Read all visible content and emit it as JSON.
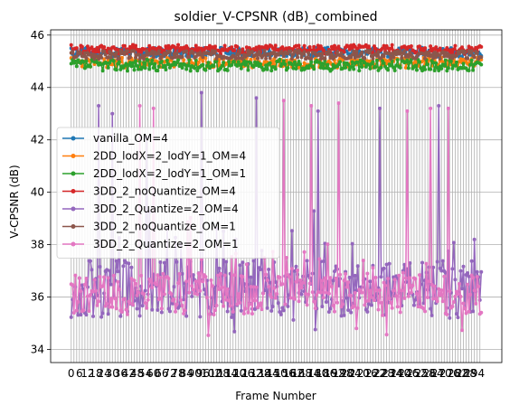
{
  "chart_data": {
    "type": "line",
    "title": "soldier_V-CPSNR (dB)_combined",
    "xlabel": "Frame Number",
    "ylabel": "V-CPSNR (dB)",
    "ylim": [
      33.5,
      46.2
    ],
    "xlim": [
      -15,
      314
    ],
    "frame_count": 300,
    "yticks": [
      34,
      36,
      38,
      40,
      42,
      44,
      46
    ],
    "grid": true,
    "legend_position": "center-left",
    "series": [
      {
        "name": "vanilla_OM=4",
        "color": "#1f77b4",
        "base": 45.35,
        "amp": 0.18,
        "seed": 11,
        "spikes": []
      },
      {
        "name": "2DD_lodX=2_lodY=1_OM=4",
        "color": "#ff7f0e",
        "base": 44.95,
        "amp": 0.2,
        "seed": 23,
        "spikes": []
      },
      {
        "name": "2DD_lodX=2_lodY=1_OM=1",
        "color": "#2ca02c",
        "base": 44.85,
        "amp": 0.22,
        "seed": 37,
        "spikes": []
      },
      {
        "name": "3DD_2_noQuantize_OM=4",
        "color": "#d62728",
        "base": 45.45,
        "amp": 0.18,
        "seed": 41,
        "spikes": []
      },
      {
        "name": "3DD_2_Quantize=2_OM=4",
        "color": "#9467bd",
        "base": 36.3,
        "amp": 1.1,
        "seed": 53,
        "spikes": [
          [
            20,
            43.3
          ],
          [
            30,
            43.0
          ],
          [
            55,
            42.1
          ],
          [
            70,
            38.6
          ],
          [
            95,
            43.8
          ],
          [
            120,
            38.2
          ],
          [
            135,
            43.6
          ],
          [
            180,
            43.1
          ],
          [
            225,
            43.2
          ],
          [
            268,
            43.3
          ]
        ]
      },
      {
        "name": "3DD_2_noQuantize_OM=1",
        "color": "#8c564b",
        "base": 45.25,
        "amp": 0.16,
        "seed": 67,
        "spikes": []
      },
      {
        "name": "3DD_2_Quantize=2_OM=1",
        "color": "#e377c2",
        "base": 36.1,
        "amp": 0.8,
        "seed": 79,
        "spikes": [
          [
            50,
            43.3
          ],
          [
            60,
            43.2
          ],
          [
            155,
            43.5
          ],
          [
            175,
            43.3
          ],
          [
            195,
            43.4
          ],
          [
            245,
            43.1
          ],
          [
            262,
            43.2
          ],
          [
            275,
            43.2
          ]
        ]
      }
    ]
  }
}
